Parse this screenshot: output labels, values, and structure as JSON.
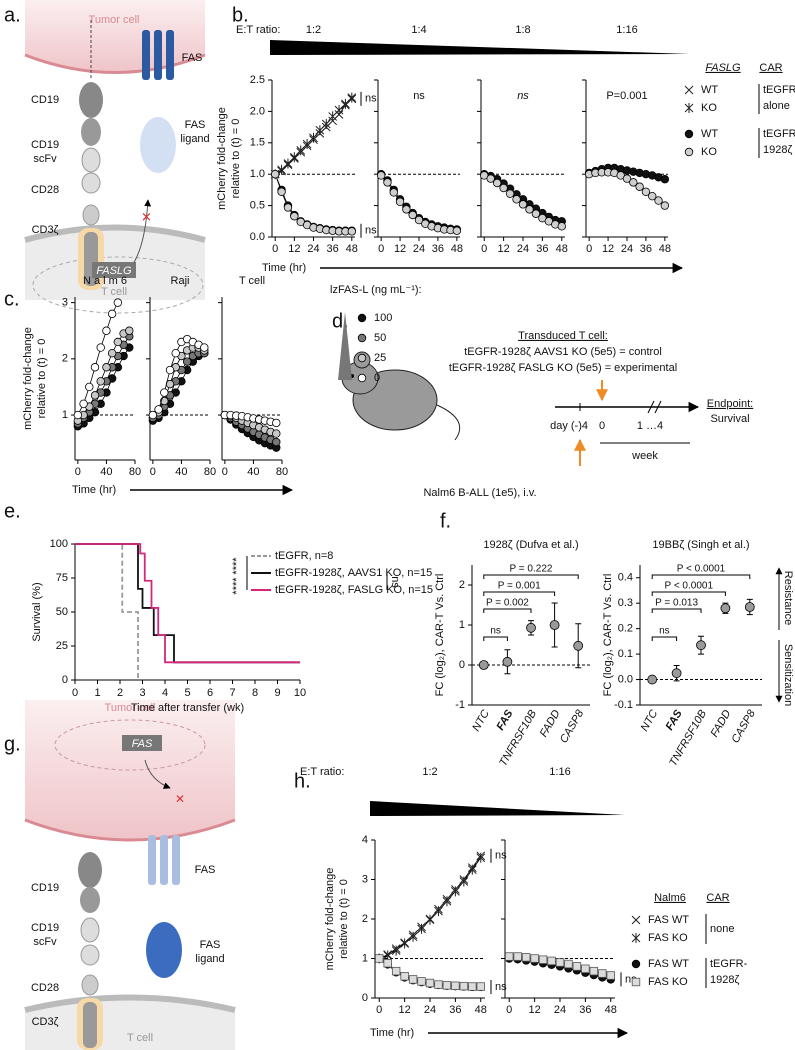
{
  "panel_labels": [
    "a.",
    "b.",
    "c.",
    "d.",
    "e.",
    "f.",
    "g.",
    "h."
  ],
  "diagram_a": {
    "tumor": "Tumor cell",
    "cd19": "CD19",
    "scfv": [
      "CD19",
      "scFv"
    ],
    "cd28": "CD28",
    "cd3z": "CD3ζ",
    "fas": "FAS",
    "fasl": [
      "FAS",
      "ligand"
    ],
    "gene": "FASLG",
    "tcell": "T cell"
  },
  "diagram_d": {
    "heading": "Transduced T cell:",
    "control": "tEGFR-1928ζ  AAVS1 KO (5e5) = control",
    "experimental": "tEGFR-1928ζ  FASLG KO (5e5) = experimental",
    "endpoint": "Endpoint:",
    "survival": "Survival",
    "day": "day (-)4",
    "zero": "0",
    "later": "1 …4",
    "week": "week",
    "tumor": "Nalm6  B-ALL (1e5), i.v."
  },
  "diagram_g": {
    "tumor": "Tumor cell",
    "gene": "FAS",
    "cd19": "CD19",
    "scfv": [
      "CD19",
      "scFv"
    ],
    "fas": "FAS",
    "fasl": [
      "FAS",
      "ligand"
    ],
    "cd28": "CD28",
    "cd3z": "CD3ζ",
    "tcell": "T cell"
  },
  "chart_data": [
    {
      "type": "line",
      "ratio_label": "E:T ratio:",
      "y_label": [
        "mCherry fold-change",
        "relative to (t) = 0"
      ],
      "x_label": "Time (hr)",
      "x": [
        0,
        4,
        8,
        12,
        16,
        20,
        24,
        28,
        32,
        36,
        40,
        44,
        48
      ],
      "xlim": [
        -2,
        50
      ],
      "xticks": [
        0,
        12,
        24,
        36,
        48
      ],
      "ylim": [
        0,
        2.5
      ],
      "yticks": [
        {
          "value": 0,
          "label": "0.0"
        },
        0.5,
        {
          "value": 1,
          "label": "1.0"
        },
        1.5,
        {
          "value": 2,
          "label": "2.0"
        },
        2.5
      ],
      "hline": 1,
      "legend_headers": [
        "FASLG",
        "CAR"
      ],
      "legend_groups": [
        [
          "tEGFR",
          "alone"
        ],
        [
          "tEGFR-",
          "1928ζ"
        ]
      ],
      "panels": [
        {
          "label": "1:2",
          "annotations": [
            "ns",
            "ns"
          ],
          "series": [
            {
              "name": "WT",
              "marker": "x",
              "color": "#222",
              "values": [
                1.0,
                1.05,
                1.15,
                1.25,
                1.35,
                1.45,
                1.55,
                1.65,
                1.75,
                1.85,
                1.95,
                2.1,
                2.2
              ]
            },
            {
              "name": "KO",
              "marker": "asterisk",
              "color": "#222",
              "values": [
                1.0,
                1.07,
                1.17,
                1.27,
                1.38,
                1.48,
                1.58,
                1.7,
                1.8,
                1.92,
                2.02,
                2.12,
                2.22
              ]
            },
            {
              "name": "WT",
              "marker": "circle",
              "color": "#111",
              "values": [
                1.0,
                0.75,
                0.5,
                0.35,
                0.25,
                0.2,
                0.16,
                0.14,
                0.12,
                0.11,
                0.1,
                0.1,
                0.1
              ]
            },
            {
              "name": "KO",
              "marker": "circle",
              "color": "#cfcfcf",
              "values": [
                1.0,
                0.72,
                0.47,
                0.33,
                0.24,
                0.19,
                0.15,
                0.13,
                0.11,
                0.1,
                0.09,
                0.09,
                0.09
              ]
            }
          ]
        },
        {
          "label": "1:4",
          "annotations": [
            "ns"
          ],
          "series": [
            {
              "marker": "circle",
              "color": "#111",
              "values": [
                1.0,
                0.9,
                0.75,
                0.6,
                0.48,
                0.38,
                0.3,
                0.24,
                0.2,
                0.17,
                0.15,
                0.13,
                0.12
              ]
            },
            {
              "marker": "circle",
              "color": "#cfcfcf",
              "values": [
                0.98,
                0.87,
                0.71,
                0.56,
                0.44,
                0.35,
                0.27,
                0.21,
                0.17,
                0.14,
                0.12,
                0.11,
                0.1
              ]
            }
          ]
        },
        {
          "label": "1:8",
          "annotations": [
            "ns"
          ],
          "series": [
            {
              "marker": "circle",
              "color": "#111",
              "values": [
                1.0,
                0.97,
                0.92,
                0.85,
                0.77,
                0.68,
                0.6,
                0.52,
                0.45,
                0.38,
                0.32,
                0.27,
                0.25
              ]
            },
            {
              "marker": "circle",
              "color": "#cfcfcf",
              "values": [
                0.98,
                0.93,
                0.86,
                0.78,
                0.69,
                0.6,
                0.52,
                0.44,
                0.37,
                0.3,
                0.25,
                0.2,
                0.17
              ]
            }
          ]
        },
        {
          "label": "1:16",
          "annotations": [
            "P=0.001"
          ],
          "series": [
            {
              "marker": "circle",
              "color": "#111",
              "values": [
                1.02,
                1.05,
                1.08,
                1.1,
                1.1,
                1.08,
                1.06,
                1.04,
                1.02,
                1.0,
                0.98,
                0.95,
                0.92
              ]
            },
            {
              "marker": "circle",
              "color": "#cfcfcf",
              "values": [
                1.0,
                1.02,
                1.03,
                1.03,
                1.02,
                0.98,
                0.93,
                0.87,
                0.8,
                0.72,
                0.65,
                0.58,
                0.5
              ]
            }
          ]
        }
      ]
    },
    {
      "type": "line",
      "y_label": [
        "mCherry fold-change",
        "relative to (t) = 0"
      ],
      "x_label": "Time (hr)",
      "x": [
        0,
        8,
        16,
        24,
        32,
        40,
        48,
        56,
        64,
        72
      ],
      "xlim": [
        -4,
        80
      ],
      "xticks": [
        0,
        40,
        80
      ],
      "ylim": [
        0.2,
        3.1
      ],
      "yticks": [
        1,
        2,
        3
      ],
      "hline": 1,
      "legend_title": "lzFAS-L (ng mL⁻¹):",
      "panels": [
        {
          "label": "N a l m 6",
          "series": [
            {
              "name": "100",
              "marker": "circle",
              "color": "#111",
              "values": [
                0.8,
                0.85,
                0.95,
                1.05,
                1.2,
                1.4,
                1.65,
                1.85,
                2.05,
                2.2
              ]
            },
            {
              "name": "50",
              "marker": "circle",
              "color": "#777",
              "values": [
                0.85,
                0.95,
                1.05,
                1.2,
                1.4,
                1.6,
                1.85,
                2.05,
                2.25,
                2.4
              ]
            },
            {
              "name": "25",
              "marker": "circle",
              "color": "#c8c8c8",
              "values": [
                0.9,
                1.0,
                1.15,
                1.35,
                1.6,
                1.85,
                2.1,
                2.3,
                2.45,
                2.5
              ]
            },
            {
              "name": "0",
              "marker": "circle",
              "color": "#ffffff",
              "values": [
                1.0,
                1.2,
                1.5,
                1.85,
                2.2,
                2.5,
                2.8,
                3.0,
                null,
                null
              ]
            }
          ]
        },
        {
          "label": "Raji",
          "series": [
            {
              "marker": "circle",
              "color": "#111",
              "values": [
                0.9,
                0.95,
                1.05,
                1.2,
                1.4,
                1.6,
                1.8,
                1.95,
                2.05,
                2.1
              ]
            },
            {
              "marker": "circle",
              "color": "#777",
              "values": [
                0.95,
                1.0,
                1.15,
                1.35,
                1.6,
                1.8,
                1.95,
                2.05,
                2.1,
                2.1
              ]
            },
            {
              "marker": "circle",
              "color": "#c8c8c8",
              "values": [
                1.0,
                1.05,
                1.25,
                1.55,
                1.85,
                2.05,
                2.15,
                2.2,
                2.2,
                2.15
              ]
            },
            {
              "marker": "circle",
              "color": "#ffffff",
              "values": [
                1.0,
                1.1,
                1.4,
                1.8,
                2.1,
                2.3,
                2.35,
                2.3,
                2.25,
                2.2
              ]
            }
          ]
        },
        {
          "label": "T cell",
          "series": [
            {
              "marker": "circle",
              "color": "#111",
              "values": [
                1.0,
                0.92,
                0.83,
                0.75,
                0.68,
                0.61,
                0.55,
                0.5,
                0.46,
                0.42
              ]
            },
            {
              "marker": "circle",
              "color": "#777",
              "values": [
                1.0,
                0.95,
                0.88,
                0.82,
                0.76,
                0.7,
                0.65,
                0.6,
                0.56,
                0.52
              ]
            },
            {
              "marker": "circle",
              "color": "#c8c8c8",
              "values": [
                1.0,
                0.98,
                0.95,
                0.9,
                0.86,
                0.82,
                0.78,
                0.74,
                0.7,
                0.67
              ]
            },
            {
              "marker": "circle",
              "color": "#ffffff",
              "values": [
                1.0,
                1.0,
                0.99,
                0.98,
                0.96,
                0.94,
                0.92,
                0.9,
                0.88,
                0.86
              ]
            }
          ]
        }
      ]
    },
    {
      "type": "step",
      "x_label": "Time after transfer (wk)",
      "y_label": "Survival (%)",
      "xlim": [
        0,
        10
      ],
      "xticks": [
        0,
        1,
        2,
        3,
        4,
        5,
        6,
        7,
        8,
        9,
        10
      ],
      "ylim": [
        0,
        100
      ],
      "yticks": [
        0,
        25,
        50,
        75,
        100
      ],
      "annotations": [
        "****",
        "****",
        "ns"
      ],
      "series": [
        {
          "name": "tEGFR, n=8",
          "color": "#999999",
          "dashed": true,
          "x": [
            0,
            2.1,
            2.8
          ],
          "values": [
            100,
            50,
            0
          ]
        },
        {
          "name": "tEGFR-1928ζ, AAVS1 KO, n=15",
          "color": "#111111",
          "dashed": false,
          "x": [
            0,
            2.8,
            3.0,
            3.5,
            4.4,
            10
          ],
          "values": [
            100,
            67,
            53,
            33,
            13,
            13
          ]
        },
        {
          "name": "tEGFR-1928ζ, FASLG KO, n=15",
          "color": "#d6267c",
          "dashed": false,
          "x": [
            0,
            2.9,
            3.1,
            3.4,
            3.7,
            4.0,
            10
          ],
          "values": [
            100,
            93,
            73,
            53,
            33,
            13,
            13
          ]
        }
      ]
    },
    {
      "type": "dot_errorbar",
      "y_label": "FC (log₂), CAR-T Vs. Ctrl",
      "categories": [
        "NTC",
        "FAS",
        "TNFRSF10B",
        "FADD",
        "CASP8"
      ],
      "hline": 0,
      "color": "#9a9a9a",
      "side_labels": [
        "Resistance",
        "Sensitization"
      ],
      "panels": [
        {
          "title": "1928ζ (Dufva et al.)",
          "ylim": [
            -1,
            2.5
          ],
          "yticks": [
            -1,
            0,
            1,
            2
          ],
          "values": [
            0,
            0.08,
            0.93,
            1.0,
            0.48
          ],
          "errors": [
            0.05,
            0.3,
            0.18,
            0.55,
            0.55
          ],
          "comparisons": [
            "ns",
            "P = 0.002",
            "P = 0.001",
            "P = 0.222"
          ]
        },
        {
          "title": "19BBζ (Singh et al.)",
          "ylim": [
            -0.1,
            0.45
          ],
          "yticks": [
            -0.1,
            {
              "value": 0,
              "label": "0.0"
            },
            0.1,
            0.2,
            0.3,
            0.4
          ],
          "values": [
            0,
            0.025,
            0.135,
            0.28,
            0.285
          ],
          "errors": [
            0.005,
            0.03,
            0.035,
            0.02,
            0.03
          ],
          "comparisons": [
            "ns",
            "P = 0.013",
            "P < 0.0001",
            "P < 0.0001"
          ]
        }
      ]
    },
    {
      "type": "line",
      "ratio_label": "E:T ratio:",
      "y_label": [
        "mCherry fold-change",
        "relative to (t) = 0"
      ],
      "x_label": "Time (hr)",
      "x": [
        0,
        4,
        8,
        12,
        16,
        20,
        24,
        28,
        32,
        36,
        40,
        44,
        48
      ],
      "xlim": [
        -2,
        50
      ],
      "xticks": [
        0,
        12,
        24,
        36,
        48
      ],
      "ylim": [
        0,
        4
      ],
      "yticks": [
        0,
        1,
        2,
        3,
        4
      ],
      "hline": 1,
      "legend_headers": [
        "Nalm6",
        "CAR"
      ],
      "legend_groups": [
        [
          "none"
        ],
        [
          "tEGFR-",
          "1928ζ"
        ]
      ],
      "panels": [
        {
          "label": "1:2",
          "annotations": [
            "ns",
            "ns"
          ],
          "series": [
            {
              "name": "FAS WT",
              "marker": "x",
              "color": "#222",
              "values": [
                1.0,
                1.1,
                1.25,
                1.4,
                1.6,
                1.8,
                2.0,
                2.25,
                2.5,
                2.75,
                3.0,
                3.3,
                3.6
              ]
            },
            {
              "name": "FAS KO",
              "marker": "asterisk",
              "color": "#222",
              "values": [
                1.0,
                1.08,
                1.2,
                1.38,
                1.55,
                1.75,
                1.98,
                2.2,
                2.45,
                2.7,
                2.95,
                3.25,
                3.55
              ]
            },
            {
              "name": "FAS WT",
              "marker": "circle",
              "color": "#111",
              "values": [
                1.0,
                0.85,
                0.65,
                0.52,
                0.45,
                0.4,
                0.36,
                0.33,
                0.31,
                0.3,
                0.29,
                0.28,
                0.28
              ]
            },
            {
              "name": "FAS KO",
              "marker": "square",
              "color": "#dcdcdc",
              "values": [
                1.0,
                0.88,
                0.68,
                0.55,
                0.47,
                0.42,
                0.38,
                0.34,
                0.32,
                0.31,
                0.3,
                0.29,
                0.29
              ]
            }
          ]
        },
        {
          "label": "1:16",
          "annotations": [
            "ns"
          ],
          "series": [
            {
              "marker": "circle",
              "color": "#111",
              "values": [
                1.0,
                0.98,
                0.95,
                0.92,
                0.88,
                0.84,
                0.8,
                0.75,
                0.7,
                0.64,
                0.58,
                0.52,
                0.47
              ]
            },
            {
              "marker": "square",
              "color": "#dcdcdc",
              "values": [
                1.05,
                1.05,
                1.03,
                1.0,
                0.97,
                0.94,
                0.9,
                0.86,
                0.8,
                0.74,
                0.68,
                0.62,
                0.57
              ]
            }
          ]
        }
      ]
    }
  ]
}
